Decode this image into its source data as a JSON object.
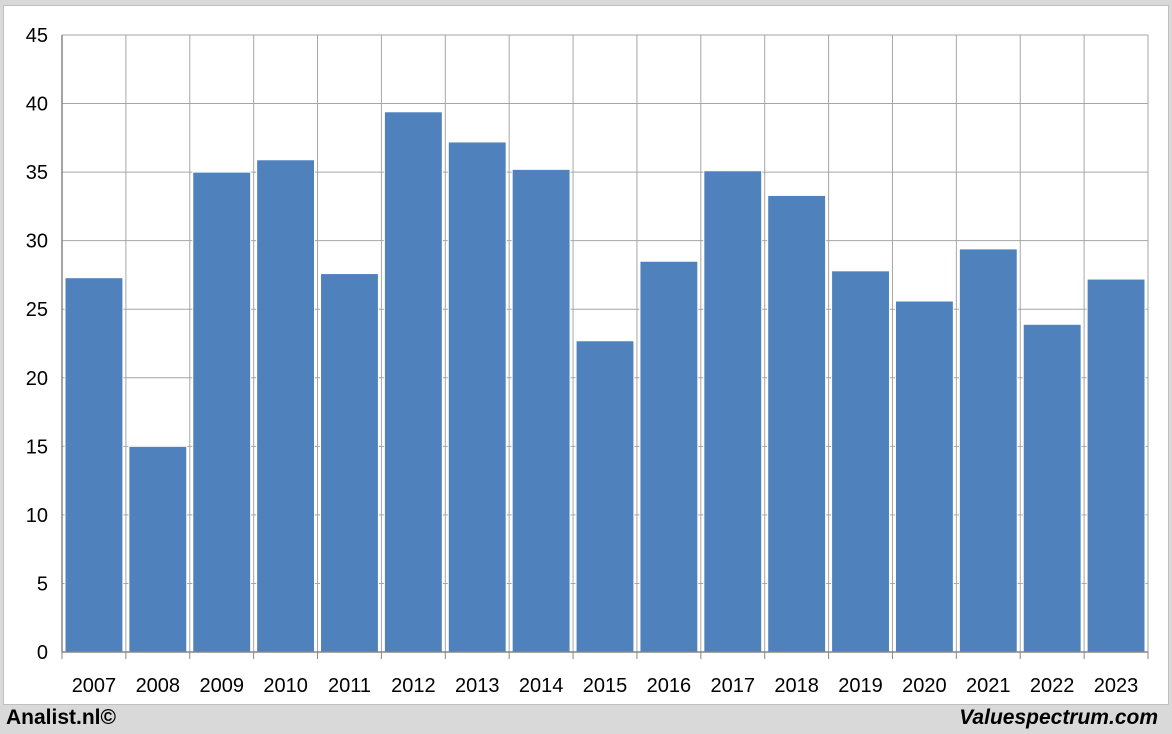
{
  "footer": {
    "left_credit": "Analist.nl©",
    "right_credit": "Valuespectrum.com"
  },
  "colors": {
    "bar": "#4f81bd",
    "grid": "#a6a6a6",
    "axis": "#868686"
  },
  "chart_data": {
    "type": "bar",
    "title": "",
    "xlabel": "",
    "ylabel": "",
    "categories": [
      "2007",
      "2008",
      "2009",
      "2010",
      "2011",
      "2012",
      "2013",
      "2014",
      "2015",
      "2016",
      "2017",
      "2018",
      "2019",
      "2020",
      "2021",
      "2022",
      "2023"
    ],
    "values": [
      27.3,
      15.0,
      35.0,
      35.9,
      27.6,
      39.4,
      37.2,
      35.2,
      22.7,
      28.5,
      35.1,
      33.3,
      27.8,
      25.6,
      29.4,
      23.9,
      27.2
    ],
    "ylim": [
      0,
      45
    ],
    "yticks": [
      "0",
      "5",
      "10",
      "15",
      "20",
      "25",
      "30",
      "35",
      "40",
      "45"
    ],
    "grid": true,
    "legend": "none"
  }
}
